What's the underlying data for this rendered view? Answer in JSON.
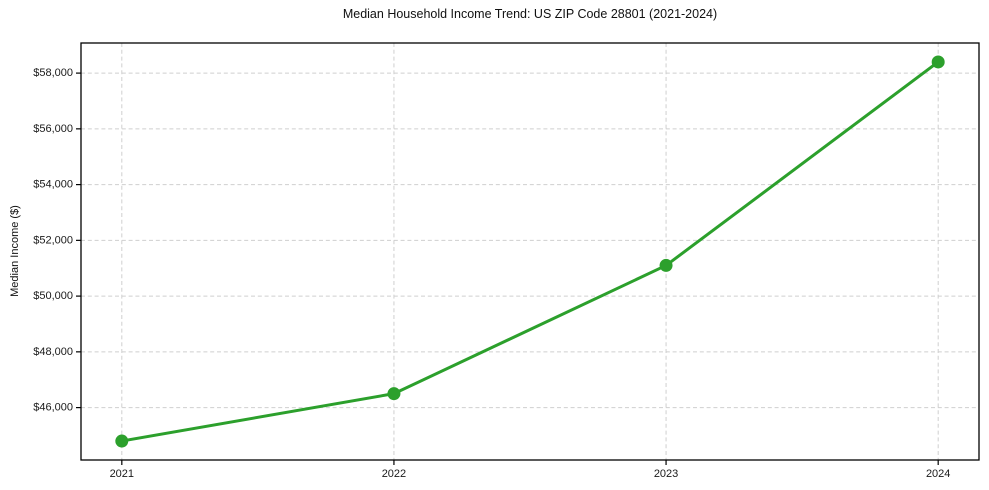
{
  "chart_data": {
    "type": "line",
    "title": "Median Household Income Trend: US ZIP Code 28801 (2021-2024)",
    "xlabel": "",
    "ylabel": "Median Income ($)",
    "categories": [
      "2021",
      "2022",
      "2023",
      "2024"
    ],
    "x": [
      2021,
      2022,
      2023,
      2024
    ],
    "series": [
      {
        "name": "Median Household Income",
        "values": [
          44800,
          46500,
          51100,
          58400
        ]
      }
    ],
    "y_ticks": {
      "values": [
        46000,
        48000,
        50000,
        52000,
        54000,
        56000,
        58000
      ],
      "labels": [
        "$46,000",
        "$48,000",
        "$50,000",
        "$52,000",
        "$54,000",
        "$56,000",
        "$58,000"
      ]
    },
    "xlim": [
      2020.85,
      2024.15
    ],
    "ylim": [
      44120,
      59080
    ],
    "grid": "both-dashed",
    "legend": "none",
    "colors": {
      "line": "#2ca02c",
      "marker": "#2ca02c",
      "grid": "#cfcfcf",
      "axis": "#000000",
      "tick_text": "#1a1a1a",
      "background": "#ffffff"
    }
  }
}
